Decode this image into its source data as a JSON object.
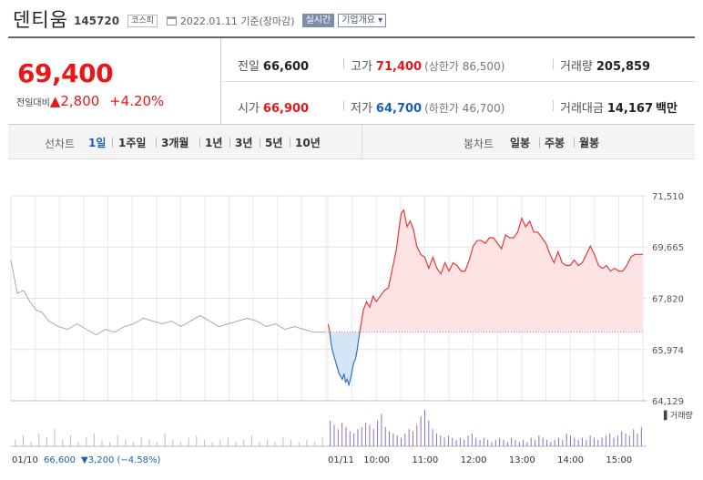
{
  "header": {
    "stock_name": "덴티움",
    "stock_code": "145720",
    "market_badge": "코스피",
    "date_text": "2022.01.11  기준(장마감)",
    "realtime_btn": "실시간",
    "overview_btn": "기업개요 ▾"
  },
  "summary": {
    "current_price": "69,400",
    "change_label": "전일대비",
    "change_amount": "▲2,800",
    "change_pct": "+4.20%",
    "prev_close_label": "전일",
    "prev_close": "66,600",
    "high_label": "고가",
    "high": "71,400",
    "upper_limit": "(상한가 86,500)",
    "volume_label": "거래량",
    "volume": "205,859",
    "open_label": "시가",
    "open": "66,900",
    "low_label": "저가",
    "low": "64,700",
    "lower_limit": "(하한가 46,700)",
    "value_label": "거래대금",
    "value": "14,167",
    "value_unit": "백만"
  },
  "tabs": {
    "line_label": "선차트",
    "line_items": [
      "1일",
      "1주일",
      "3개월",
      "1년",
      "3년",
      "5년",
      "10년"
    ],
    "active": "1일",
    "candle_label": "봉차트",
    "candle_items": [
      "일봉",
      "주봉",
      "월봉"
    ]
  },
  "chart_data": {
    "type": "line",
    "title": "",
    "ylim": [
      64129,
      71510
    ],
    "y_ticks": [
      "71,510",
      "69,665",
      "67,820",
      "65,974",
      "64,129"
    ],
    "baseline": 66600,
    "x_tick_labels": [
      "01/11",
      "10:00",
      "11:00",
      "12:00",
      "13:00",
      "14:00",
      "15:00"
    ],
    "volume_legend": "▌거래량",
    "footer_date": "01/10",
    "footer_price": "66,600",
    "footer_change": "▼3,200 (−4.58%)",
    "prev_day": [
      [
        0,
        69200
      ],
      [
        2,
        68000
      ],
      [
        4,
        68100
      ],
      [
        6,
        67700
      ],
      [
        8,
        67400
      ],
      [
        10,
        67300
      ],
      [
        12,
        67000
      ],
      [
        15,
        66800
      ],
      [
        18,
        66700
      ],
      [
        21,
        66900
      ],
      [
        24,
        66700
      ],
      [
        27,
        66500
      ],
      [
        30,
        66700
      ],
      [
        33,
        66600
      ],
      [
        36,
        66800
      ],
      [
        39,
        66900
      ],
      [
        42,
        67100
      ],
      [
        45,
        67000
      ],
      [
        48,
        66900
      ],
      [
        51,
        67000
      ],
      [
        54,
        66800
      ],
      [
        57,
        67000
      ],
      [
        60,
        67200
      ],
      [
        63,
        67000
      ],
      [
        66,
        66800
      ],
      [
        69,
        66900
      ],
      [
        72,
        67000
      ],
      [
        75,
        67100
      ],
      [
        78,
        67000
      ],
      [
        81,
        66800
      ],
      [
        84,
        66900
      ],
      [
        87,
        66700
      ],
      [
        90,
        66800
      ],
      [
        93,
        66700
      ],
      [
        96,
        66600
      ],
      [
        100,
        66600
      ]
    ],
    "today": [
      [
        "09:00",
        66900
      ],
      [
        "09:02",
        66700
      ],
      [
        "09:04",
        66200
      ],
      [
        "09:06",
        65900
      ],
      [
        "09:08",
        65700
      ],
      [
        "09:10",
        65500
      ],
      [
        "09:12",
        65300
      ],
      [
        "09:14",
        65100
      ],
      [
        "09:16",
        65000
      ],
      [
        "09:18",
        64900
      ],
      [
        "09:20",
        65100
      ],
      [
        "09:22",
        64800
      ],
      [
        "09:24",
        64900
      ],
      [
        "09:26",
        64700
      ],
      [
        "09:28",
        64900
      ],
      [
        "09:30",
        65200
      ],
      [
        "09:32",
        65500
      ],
      [
        "09:34",
        65600
      ],
      [
        "09:36",
        65900
      ],
      [
        "09:38",
        66300
      ],
      [
        "09:40",
        66700
      ],
      [
        "09:44",
        67400
      ],
      [
        "09:48",
        67700
      ],
      [
        "09:52",
        67500
      ],
      [
        "09:56",
        67900
      ],
      [
        "10:00",
        67700
      ],
      [
        "10:05",
        67900
      ],
      [
        "10:10",
        68100
      ],
      [
        "10:15",
        68200
      ],
      [
        "10:20",
        68900
      ],
      [
        "10:25",
        69600
      ],
      [
        "10:28",
        70300
      ],
      [
        "10:31",
        70900
      ],
      [
        "10:34",
        71000
      ],
      [
        "10:38",
        70400
      ],
      [
        "10:42",
        70600
      ],
      [
        "10:46",
        70300
      ],
      [
        "10:50",
        69700
      ],
      [
        "10:55",
        69400
      ],
      [
        "11:00",
        69300
      ],
      [
        "11:05",
        68900
      ],
      [
        "11:10",
        69300
      ],
      [
        "11:15",
        68900
      ],
      [
        "11:20",
        68700
      ],
      [
        "11:25",
        69100
      ],
      [
        "11:30",
        68800
      ],
      [
        "11:35",
        69100
      ],
      [
        "11:40",
        69000
      ],
      [
        "11:45",
        68800
      ],
      [
        "11:50",
        68800
      ],
      [
        "11:55",
        69200
      ],
      [
        "12:00",
        69700
      ],
      [
        "12:05",
        69900
      ],
      [
        "12:10",
        69900
      ],
      [
        "12:15",
        69800
      ],
      [
        "12:20",
        70000
      ],
      [
        "12:25",
        70000
      ],
      [
        "12:30",
        69800
      ],
      [
        "12:35",
        69600
      ],
      [
        "12:40",
        70100
      ],
      [
        "12:45",
        70000
      ],
      [
        "12:50",
        70000
      ],
      [
        "12:55",
        70200
      ],
      [
        "13:00",
        70700
      ],
      [
        "13:05",
        70400
      ],
      [
        "13:10",
        70600
      ],
      [
        "13:15",
        70200
      ],
      [
        "13:20",
        70200
      ],
      [
        "13:25",
        70000
      ],
      [
        "13:30",
        69800
      ],
      [
        "13:35",
        69400
      ],
      [
        "13:40",
        69100
      ],
      [
        "13:45",
        69500
      ],
      [
        "13:50",
        69100
      ],
      [
        "13:55",
        69000
      ],
      [
        "14:00",
        69000
      ],
      [
        "14:05",
        69200
      ],
      [
        "14:10",
        69000
      ],
      [
        "14:15",
        69100
      ],
      [
        "14:20",
        69400
      ],
      [
        "14:25",
        69700
      ],
      [
        "14:30",
        69400
      ],
      [
        "14:35",
        69000
      ],
      [
        "14:40",
        68900
      ],
      [
        "14:45",
        69000
      ],
      [
        "14:50",
        68800
      ],
      [
        "14:55",
        68900
      ],
      [
        "15:00",
        68800
      ],
      [
        "15:05",
        68800
      ],
      [
        "15:10",
        69000
      ],
      [
        "15:15",
        69300
      ],
      [
        "15:20",
        69400
      ],
      [
        "15:30",
        69400
      ]
    ],
    "volume_prev": [
      3,
      5,
      2,
      6,
      4,
      8,
      3,
      5,
      2,
      4,
      6,
      3,
      2,
      5,
      3,
      2,
      4,
      3,
      2,
      6,
      3,
      2,
      4,
      5,
      3,
      2,
      3,
      4,
      2,
      3,
      5,
      2,
      3,
      2,
      4,
      3,
      2,
      3,
      2,
      4
    ],
    "volume_today": [
      12,
      10,
      8,
      11,
      9,
      7,
      6,
      8,
      9,
      11,
      10,
      8,
      12,
      15,
      9,
      7,
      6,
      5,
      4,
      6,
      8,
      7,
      10,
      14,
      17,
      12,
      8,
      6,
      5,
      4,
      5,
      4,
      3,
      4,
      3,
      5,
      6,
      4,
      3,
      4,
      3,
      2,
      3,
      4,
      3,
      2,
      4,
      3,
      2,
      3,
      2,
      4,
      3,
      5,
      4,
      3,
      2,
      3,
      4,
      3,
      6,
      5,
      4,
      3,
      4,
      3,
      5,
      4,
      3,
      4,
      5,
      6,
      4,
      5,
      7,
      6,
      5,
      8,
      6,
      9
    ]
  }
}
